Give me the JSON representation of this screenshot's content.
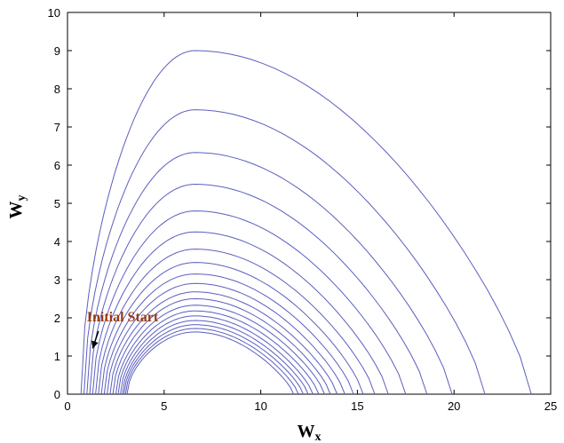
{
  "chart_data": {
    "type": "line",
    "title": "",
    "xlabel": "W",
    "xlabel_sub": "x",
    "ylabel": "W",
    "ylabel_sub": "y",
    "xlim": [
      0,
      25
    ],
    "ylim": [
      0,
      10
    ],
    "xticks": [
      0,
      5,
      10,
      15,
      20,
      25
    ],
    "yticks": [
      0,
      1,
      2,
      3,
      4,
      5,
      6,
      7,
      8,
      9,
      10
    ],
    "grid": false,
    "legend": "none",
    "line_color": "#5b5fbf",
    "annotation": {
      "text": "Initial Start",
      "color": "#9b3a12",
      "arrow_tail": [
        1.6,
        1.65
      ],
      "arrow_head": [
        1.3,
        1.2
      ]
    },
    "series": [
      {
        "left_start": 0.7,
        "peak_x": 6.6,
        "peak_y": 9.0,
        "right_end": 24.0
      },
      {
        "left_start": 0.85,
        "peak_x": 6.6,
        "peak_y": 7.45,
        "right_end": 21.6
      },
      {
        "left_start": 1.0,
        "peak_x": 6.6,
        "peak_y": 6.33,
        "right_end": 19.9
      },
      {
        "left_start": 1.15,
        "peak_x": 6.6,
        "peak_y": 5.5,
        "right_end": 18.6
      },
      {
        "left_start": 1.3,
        "peak_x": 6.6,
        "peak_y": 4.8,
        "right_end": 17.5
      },
      {
        "left_start": 1.45,
        "peak_x": 6.6,
        "peak_y": 4.25,
        "right_end": 16.6
      },
      {
        "left_start": 1.6,
        "peak_x": 6.6,
        "peak_y": 3.8,
        "right_end": 15.9
      },
      {
        "left_start": 1.75,
        "peak_x": 6.6,
        "peak_y": 3.45,
        "right_end": 15.3
      },
      {
        "left_start": 1.9,
        "peak_x": 6.6,
        "peak_y": 3.15,
        "right_end": 14.8
      },
      {
        "left_start": 2.05,
        "peak_x": 6.6,
        "peak_y": 2.9,
        "right_end": 14.35
      },
      {
        "left_start": 2.2,
        "peak_x": 6.6,
        "peak_y": 2.68,
        "right_end": 13.95
      },
      {
        "left_start": 2.35,
        "peak_x": 6.6,
        "peak_y": 2.5,
        "right_end": 13.6
      },
      {
        "left_start": 2.5,
        "peak_x": 6.6,
        "peak_y": 2.33,
        "right_end": 13.3
      },
      {
        "left_start": 2.62,
        "peak_x": 6.6,
        "peak_y": 2.18,
        "right_end": 13.0
      },
      {
        "left_start": 2.74,
        "peak_x": 6.6,
        "peak_y": 2.05,
        "right_end": 12.7
      },
      {
        "left_start": 2.84,
        "peak_x": 6.6,
        "peak_y": 1.93,
        "right_end": 12.45
      },
      {
        "left_start": 2.92,
        "peak_x": 6.6,
        "peak_y": 1.82,
        "right_end": 12.2
      },
      {
        "left_start": 3.0,
        "peak_x": 6.6,
        "peak_y": 1.72,
        "right_end": 11.95
      },
      {
        "left_start": 3.08,
        "peak_x": 6.6,
        "peak_y": 1.63,
        "right_end": 11.7
      }
    ]
  }
}
